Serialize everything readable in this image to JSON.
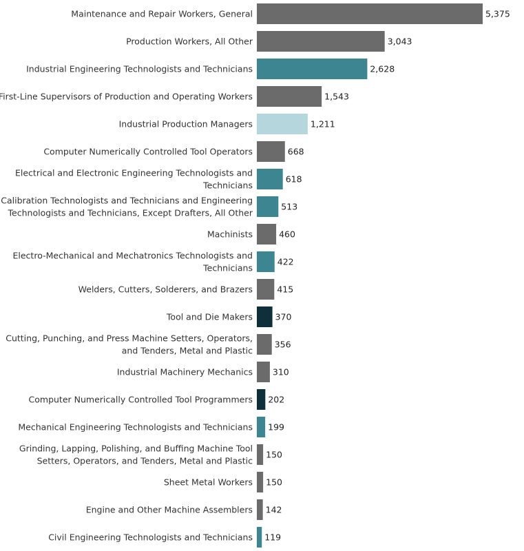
{
  "chart_data": {
    "type": "bar",
    "orientation": "horizontal",
    "title": "",
    "xlabel": "",
    "ylabel": "",
    "grid": false,
    "xlim": [
      0,
      5375
    ],
    "categories": [
      [
        "Maintenance and Repair Workers, General"
      ],
      [
        "Production Workers, All Other"
      ],
      [
        "Industrial Engineering Technologists and Technicians"
      ],
      [
        "First-Line Supervisors of Production and Operating Workers"
      ],
      [
        "Industrial Production Managers"
      ],
      [
        "Computer Numerically Controlled Tool Operators"
      ],
      [
        "Electrical and Electronic Engineering Technologists and",
        "Technicians"
      ],
      [
        "Calibration Technologists and Technicians and Engineering",
        "Technologists and Technicians, Except Drafters, All Other"
      ],
      [
        "Machinists"
      ],
      [
        "Electro-Mechanical and Mechatronics Technologists and",
        "Technicians"
      ],
      [
        "Welders, Cutters, Solderers, and Brazers"
      ],
      [
        "Tool and Die Makers"
      ],
      [
        "Cutting, Punching, and Press Machine Setters, Operators,",
        "and Tenders, Metal and Plastic"
      ],
      [
        "Industrial Machinery Mechanics"
      ],
      [
        "Computer Numerically Controlled Tool Programmers"
      ],
      [
        "Mechanical Engineering Technologists and Technicians"
      ],
      [
        "Grinding, Lapping, Polishing, and Buffing Machine Tool",
        "Setters, Operators, and Tenders, Metal and Plastic"
      ],
      [
        "Sheet Metal Workers"
      ],
      [
        "Engine and Other Machine Assemblers"
      ],
      [
        "Civil Engineering Technologists and Technicians"
      ]
    ],
    "values": [
      5375,
      3043,
      2628,
      1543,
      1211,
      668,
      618,
      513,
      460,
      422,
      415,
      370,
      356,
      310,
      202,
      199,
      150,
      150,
      142,
      119
    ],
    "value_labels": [
      "5,375",
      "3,043",
      "2,628",
      "1,543",
      "1,211",
      "668",
      "618",
      "513",
      "460",
      "422",
      "415",
      "370",
      "356",
      "310",
      "202",
      "199",
      "150",
      "150",
      "142",
      "119"
    ],
    "colors": [
      "#6b6b6b",
      "#6b6b6b",
      "#3d8590",
      "#6b6b6b",
      "#b5d6dc",
      "#6b6b6b",
      "#3d8590",
      "#3d8590",
      "#6b6b6b",
      "#3d8590",
      "#6b6b6b",
      "#0f2f3a",
      "#6b6b6b",
      "#6b6b6b",
      "#0f2f3a",
      "#3d8590",
      "#6b6b6b",
      "#6b6b6b",
      "#6b6b6b",
      "#3d8590"
    ]
  }
}
